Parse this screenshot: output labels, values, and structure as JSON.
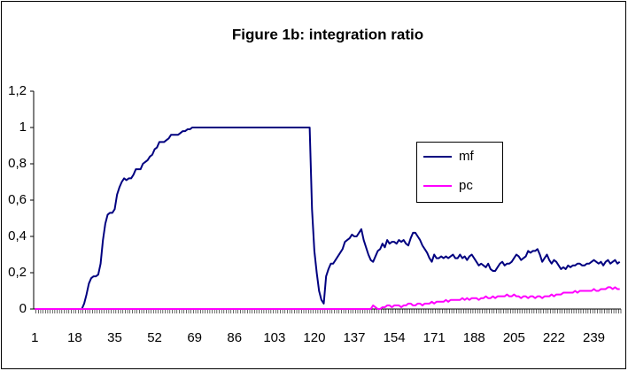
{
  "chart_data": {
    "type": "line",
    "title": "Figure 1b: integration ratio",
    "categories": [
      1,
      null,
      null,
      null,
      null,
      null,
      null,
      null,
      null,
      null,
      null,
      null,
      null,
      null,
      null,
      null,
      null,
      18,
      null,
      null,
      null,
      null,
      null,
      null,
      null,
      null,
      null,
      null,
      null,
      null,
      null,
      null,
      null,
      null,
      35,
      null,
      null,
      null,
      null,
      null,
      null,
      null,
      null,
      null,
      null,
      null,
      null,
      null,
      null,
      null,
      null,
      52,
      null,
      null,
      null,
      null,
      null,
      null,
      null,
      null,
      null,
      null,
      null,
      null,
      null,
      null,
      null,
      null,
      69,
      null,
      null,
      null,
      null,
      null,
      null,
      null,
      null,
      null,
      null,
      null,
      null,
      null,
      null,
      null,
      null,
      86,
      null,
      null,
      null,
      null,
      null,
      null,
      null,
      null,
      null,
      null,
      null,
      null,
      null,
      null,
      null,
      null,
      103,
      null,
      null,
      null,
      null,
      null,
      null,
      null,
      null,
      null,
      null,
      null,
      null,
      null,
      null,
      null,
      null,
      120,
      null,
      null,
      null,
      null,
      null,
      null,
      null,
      null,
      null,
      null,
      null,
      null,
      null,
      null,
      null,
      null,
      137,
      null,
      null,
      null,
      null,
      null,
      null,
      null,
      null,
      null,
      null,
      null,
      null,
      null,
      null,
      null,
      null,
      154,
      null,
      null,
      null,
      null,
      null,
      null,
      null,
      null,
      null,
      null,
      null,
      null,
      null,
      null,
      null,
      null,
      171,
      null,
      null,
      null,
      null,
      null,
      null,
      null,
      null,
      null,
      null,
      null,
      null,
      null,
      null,
      null,
      null,
      188,
      null,
      null,
      null,
      null,
      null,
      null,
      null,
      null,
      null,
      null,
      null,
      null,
      null,
      null,
      null,
      null,
      205,
      null,
      null,
      null,
      null,
      null,
      null,
      null,
      null,
      null,
      null,
      null,
      null,
      null,
      null,
      null,
      null,
      222,
      null,
      null,
      null,
      null,
      null,
      null,
      null,
      null,
      null,
      null,
      null,
      null,
      null,
      null,
      null,
      null,
      239,
      null,
      null,
      null,
      null,
      null,
      null,
      null,
      null,
      null,
      null,
      null
    ],
    "series": [
      {
        "name": "mf",
        "color": "#000080",
        "values": [
          0,
          0,
          0,
          0,
          0,
          0,
          0,
          0,
          0,
          0,
          0,
          0,
          0,
          0,
          0,
          0,
          0,
          0,
          0,
          0,
          0,
          0.03,
          0.08,
          0.14,
          0.17,
          0.18,
          0.18,
          0.19,
          0.25,
          0.38,
          0.47,
          0.52,
          0.53,
          0.53,
          0.55,
          0.63,
          0.67,
          0.7,
          0.72,
          0.71,
          0.72,
          0.72,
          0.74,
          0.77,
          0.77,
          0.77,
          0.8,
          0.81,
          0.82,
          0.84,
          0.85,
          0.88,
          0.89,
          0.92,
          0.92,
          0.92,
          0.93,
          0.94,
          0.96,
          0.96,
          0.96,
          0.96,
          0.97,
          0.98,
          0.98,
          0.99,
          0.99,
          1,
          1,
          1,
          1,
          1,
          1,
          1,
          1,
          1,
          1,
          1,
          1,
          1,
          1,
          1,
          1,
          1,
          1,
          1,
          1,
          1,
          1,
          1,
          1,
          1,
          1,
          1,
          1,
          1,
          1,
          1,
          1,
          1,
          1,
          1,
          1,
          1,
          1,
          1,
          1,
          1,
          1,
          1,
          1,
          1,
          1,
          1,
          1,
          1,
          1,
          1,
          0.55,
          0.32,
          0.2,
          0.1,
          0.05,
          0.03,
          0.18,
          0.22,
          0.25,
          0.25,
          0.27,
          0.29,
          0.31,
          0.33,
          0.37,
          0.38,
          0.39,
          0.41,
          0.4,
          0.4,
          0.42,
          0.44,
          0.38,
          0.34,
          0.3,
          0.27,
          0.26,
          0.29,
          0.32,
          0.33,
          0.36,
          0.34,
          0.38,
          0.36,
          0.37,
          0.37,
          0.36,
          0.38,
          0.37,
          0.38,
          0.36,
          0.35,
          0.39,
          0.42,
          0.42,
          0.4,
          0.38,
          0.35,
          0.33,
          0.31,
          0.28,
          0.26,
          0.3,
          0.28,
          0.28,
          0.29,
          0.28,
          0.29,
          0.28,
          0.29,
          0.3,
          0.28,
          0.28,
          0.3,
          0.28,
          0.29,
          0.27,
          0.29,
          0.3,
          0.28,
          0.26,
          0.24,
          0.25,
          0.24,
          0.23,
          0.25,
          0.22,
          0.21,
          0.21,
          0.23,
          0.25,
          0.26,
          0.24,
          0.25,
          0.25,
          0.26,
          0.28,
          0.3,
          0.29,
          0.27,
          0.28,
          0.29,
          0.32,
          0.31,
          0.32,
          0.32,
          0.33,
          0.3,
          0.26,
          0.28,
          0.3,
          0.27,
          0.25,
          0.27,
          0.26,
          0.24,
          0.22,
          0.23,
          0.22,
          0.24,
          0.23,
          0.24,
          0.24,
          0.25,
          0.25,
          0.24,
          0.24,
          0.25,
          0.25,
          0.26,
          0.27,
          0.26,
          0.25,
          0.26,
          0.24,
          0.26,
          0.27,
          0.25,
          0.26,
          0.27,
          0.25,
          0.26
        ]
      },
      {
        "name": "pc",
        "color": "#ff00ff",
        "values": [
          0,
          0,
          0,
          0,
          0,
          0,
          0,
          0,
          0,
          0,
          0,
          0,
          0,
          0,
          0,
          0,
          0,
          0,
          0,
          0,
          0,
          0,
          0,
          0,
          0,
          0,
          0,
          0,
          0,
          0,
          0,
          0,
          0,
          0,
          0,
          0,
          0,
          0,
          0,
          0,
          0,
          0,
          0,
          0,
          0,
          0,
          0,
          0,
          0,
          0,
          0,
          0,
          0,
          0,
          0,
          0,
          0,
          0,
          0,
          0,
          0,
          0,
          0,
          0,
          0,
          0,
          0,
          0,
          0,
          0,
          0,
          0,
          0,
          0,
          0,
          0,
          0,
          0,
          0,
          0,
          0,
          0,
          0,
          0,
          0,
          0,
          0,
          0,
          0,
          0,
          0,
          0,
          0,
          0,
          0,
          0,
          0,
          0,
          0,
          0,
          0,
          0,
          0,
          0,
          0,
          0,
          0,
          0,
          0,
          0,
          0,
          0,
          0,
          0,
          0,
          0,
          0,
          0,
          0,
          0,
          0,
          0,
          0,
          0,
          0,
          0,
          0,
          0,
          0,
          0,
          0,
          0,
          0,
          0,
          0,
          0,
          0,
          0,
          0,
          0,
          0,
          0,
          0,
          0,
          0.02,
          0.01,
          0,
          0,
          0.01,
          0.01,
          0.02,
          0.02,
          0.01,
          0.02,
          0.02,
          0.02,
          0.01,
          0.02,
          0.02,
          0.03,
          0.03,
          0.02,
          0.02,
          0.03,
          0.03,
          0.02,
          0.03,
          0.03,
          0.03,
          0.04,
          0.03,
          0.04,
          0.04,
          0.04,
          0.04,
          0.05,
          0.04,
          0.05,
          0.05,
          0.05,
          0.05,
          0.05,
          0.06,
          0.05,
          0.06,
          0.05,
          0.06,
          0.06,
          0.06,
          0.05,
          0.06,
          0.06,
          0.07,
          0.06,
          0.06,
          0.07,
          0.06,
          0.07,
          0.07,
          0.07,
          0.07,
          0.08,
          0.07,
          0.07,
          0.08,
          0.07,
          0.07,
          0.06,
          0.07,
          0.07,
          0.06,
          0.07,
          0.07,
          0.06,
          0.07,
          0.07,
          0.06,
          0.07,
          0.07,
          0.07,
          0.08,
          0.07,
          0.08,
          0.08,
          0.08,
          0.09,
          0.09,
          0.09,
          0.09,
          0.09,
          0.1,
          0.09,
          0.1,
          0.1,
          0.1,
          0.1,
          0.1,
          0.1,
          0.11,
          0.1,
          0.1,
          0.11,
          0.11,
          0.11,
          0.12,
          0.12,
          0.11,
          0.12,
          0.11,
          0.11
        ]
      }
    ],
    "ylim": [
      0,
      1.2
    ],
    "yticks": [
      0,
      {
        "value": 0.2,
        "label": "0,2"
      },
      {
        "value": 0.4,
        "label": "0,4"
      },
      {
        "value": 0.6,
        "label": "0,6"
      },
      {
        "value": 0.8,
        "label": "0,8"
      },
      1,
      {
        "value": 1.2,
        "label": "1,2"
      }
    ],
    "grid": false,
    "legend": "right"
  }
}
